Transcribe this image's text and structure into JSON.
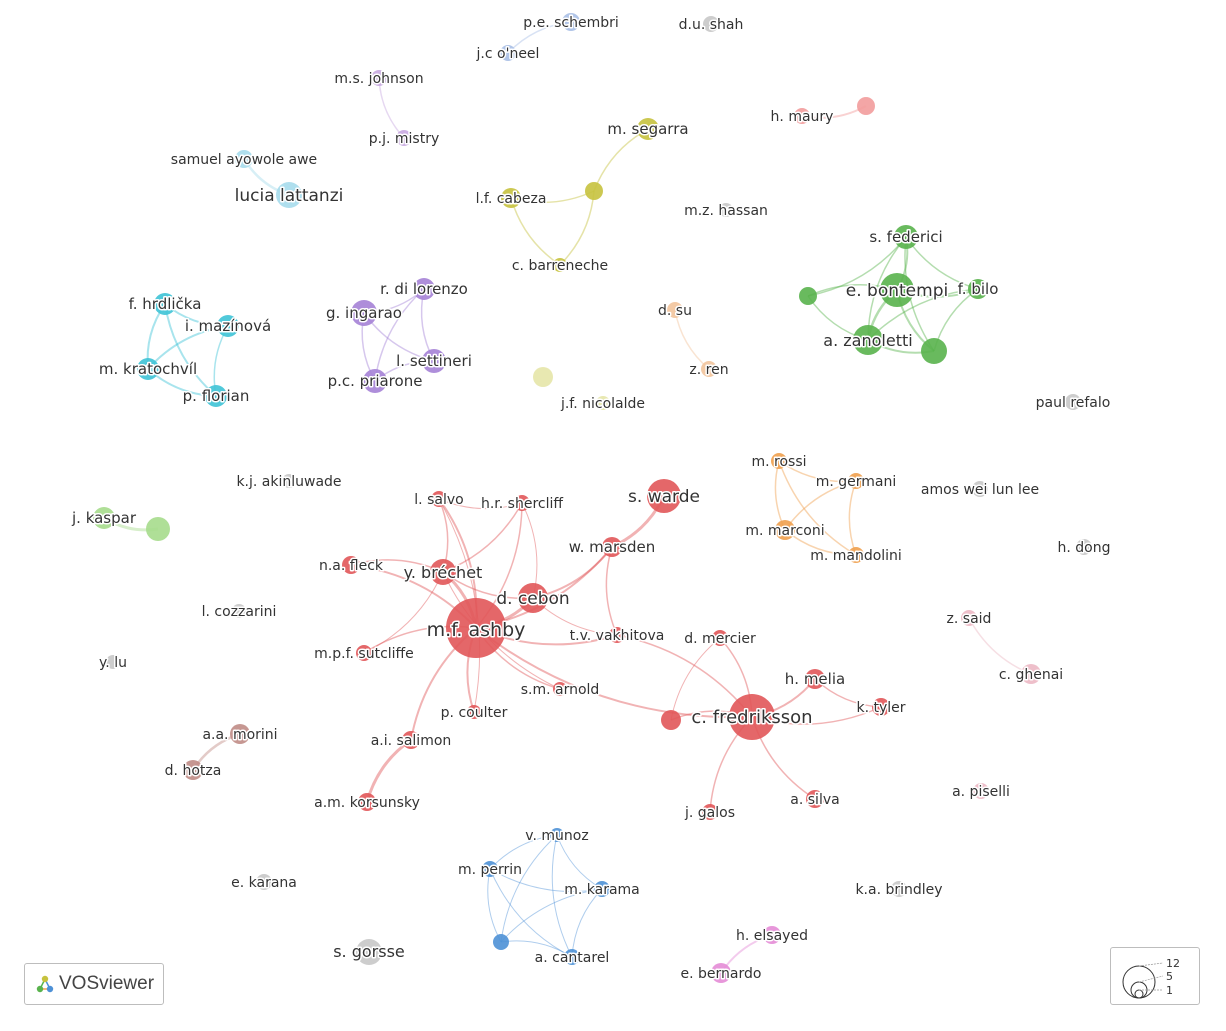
{
  "colors": {
    "red": "#e15759",
    "green": "#59b34d",
    "blue": "#4e91d6",
    "cyan": "#3ec3d6",
    "purple": "#a582d6",
    "olive": "#c6c23e",
    "orange": "#f0a04e",
    "light_blue": "#a9bfe6",
    "lavender": "#c8a8e0",
    "pale_cyan": "#a6dcec",
    "pale_red": "#f29c9c",
    "light_green": "#a6dc8c",
    "pale_olive": "#e6e6a8",
    "peach": "#f2c49c",
    "brown": "#c08c86",
    "pink": "#e48cd6",
    "pale_pink": "#ecb8c4",
    "grey": "#c8c8c8"
  },
  "nodes": [
    {
      "label": "m.f. ashby",
      "cluster": "red"
    },
    {
      "label": "c. fredriksson",
      "cluster": "red"
    },
    {
      "label": "s. warde",
      "cluster": "red"
    },
    {
      "label": "d. cebon",
      "cluster": "red"
    },
    {
      "label": "y. bréchet",
      "cluster": "red"
    },
    {
      "label": "w. marsden",
      "cluster": "red"
    },
    {
      "label": "l. salvo",
      "cluster": "red"
    },
    {
      "label": "h.r. shercliff",
      "cluster": "red"
    },
    {
      "label": "n.a. fleck",
      "cluster": "red"
    },
    {
      "label": "m.p.f. sutcliffe",
      "cluster": "red"
    },
    {
      "label": "t.v. vakhitova",
      "cluster": "red"
    },
    {
      "label": "s.m. arnold",
      "cluster": "red"
    },
    {
      "label": "p. coulter",
      "cluster": "red"
    },
    {
      "label": "a.i. salimon",
      "cluster": "red"
    },
    {
      "label": "a.m. korsunsky",
      "cluster": "red"
    },
    {
      "label": "d. mercier",
      "cluster": "red"
    },
    {
      "label": "h. melia",
      "cluster": "red"
    },
    {
      "label": "k. tyler",
      "cluster": "red"
    },
    {
      "label": "a. silva",
      "cluster": "red"
    },
    {
      "label": "j. galos",
      "cluster": "red"
    },
    {
      "label": "",
      "cluster": "red"
    },
    {
      "label": "e. bontempi",
      "cluster": "green"
    },
    {
      "label": "s. federici",
      "cluster": "green"
    },
    {
      "label": "f. bilo",
      "cluster": "green"
    },
    {
      "label": "a. zanoletti",
      "cluster": "green"
    },
    {
      "label": "",
      "cluster": "green"
    },
    {
      "label": "",
      "cluster": "green"
    },
    {
      "label": "v. munoz",
      "cluster": "blue"
    },
    {
      "label": "m. perrin",
      "cluster": "blue"
    },
    {
      "label": "m. karama",
      "cluster": "blue"
    },
    {
      "label": "a. cantarel",
      "cluster": "blue"
    },
    {
      "label": "",
      "cluster": "blue"
    },
    {
      "label": "f. hrdlička",
      "cluster": "cyan"
    },
    {
      "label": "i. mazínová",
      "cluster": "cyan"
    },
    {
      "label": "m. kratochvíl",
      "cluster": "cyan"
    },
    {
      "label": "p. florian",
      "cluster": "cyan"
    },
    {
      "label": "g. ingarao",
      "cluster": "purple"
    },
    {
      "label": "r. di lorenzo",
      "cluster": "purple"
    },
    {
      "label": "l. settineri",
      "cluster": "purple"
    },
    {
      "label": "p.c. priarone",
      "cluster": "purple"
    },
    {
      "label": "m. segarra",
      "cluster": "olive"
    },
    {
      "label": "l.f. cabeza",
      "cluster": "olive"
    },
    {
      "label": "c. barreneche",
      "cluster": "olive"
    },
    {
      "label": "",
      "cluster": "olive"
    },
    {
      "label": "m. rossi",
      "cluster": "orange"
    },
    {
      "label": "m. germani",
      "cluster": "orange"
    },
    {
      "label": "m. marconi",
      "cluster": "orange"
    },
    {
      "label": "m. mandolini",
      "cluster": "orange"
    },
    {
      "label": "p.e. schembri",
      "cluster": "light_blue"
    },
    {
      "label": "j.c o'neel",
      "cluster": "light_blue"
    },
    {
      "label": "m.s. johnson",
      "cluster": "lavender"
    },
    {
      "label": "p.j. mistry",
      "cluster": "lavender"
    },
    {
      "label": "samuel ayowole awe",
      "cluster": "pale_cyan"
    },
    {
      "label": "lucia lattanzi",
      "cluster": "pale_cyan"
    },
    {
      "label": "h. maury",
      "cluster": "pale_red"
    },
    {
      "label": "",
      "cluster": "pale_red"
    },
    {
      "label": "j. kaspar",
      "cluster": "light_green"
    },
    {
      "label": "",
      "cluster": "light_green"
    },
    {
      "label": "j.f. nicolalde",
      "cluster": "pale_olive"
    },
    {
      "label": "",
      "cluster": "pale_olive"
    },
    {
      "label": "d. su",
      "cluster": "peach"
    },
    {
      "label": "z. ren",
      "cluster": "peach"
    },
    {
      "label": "a.a. morini",
      "cluster": "brown"
    },
    {
      "label": "d. hotza",
      "cluster": "brown"
    },
    {
      "label": "h. elsayed",
      "cluster": "pink"
    },
    {
      "label": "e. bernardo",
      "cluster": "pink"
    },
    {
      "label": "z. said",
      "cluster": "pale_pink"
    },
    {
      "label": "c. ghenai",
      "cluster": "pale_pink"
    },
    {
      "label": "a. piselli",
      "cluster": "pale_pink"
    },
    {
      "label": "d.u. shah",
      "cluster": "grey"
    },
    {
      "label": "m.z. hassan",
      "cluster": "grey"
    },
    {
      "label": "paul refalo",
      "cluster": "grey"
    },
    {
      "label": "amos wei lun lee",
      "cluster": "grey"
    },
    {
      "label": "h. dong",
      "cluster": "grey"
    },
    {
      "label": "k.j. akinluwade",
      "cluster": "grey"
    },
    {
      "label": "l. cozzarini",
      "cluster": "grey"
    },
    {
      "label": "y. lu",
      "cluster": "grey"
    },
    {
      "label": "e. karana",
      "cluster": "grey"
    },
    {
      "label": "k.a. brindley",
      "cluster": "grey"
    },
    {
      "label": "s. gorsse",
      "cluster": "grey"
    }
  ],
  "brand": {
    "name": "VOSviewer"
  },
  "size_legend": {
    "values": [
      "12",
      "5",
      "1"
    ]
  }
}
